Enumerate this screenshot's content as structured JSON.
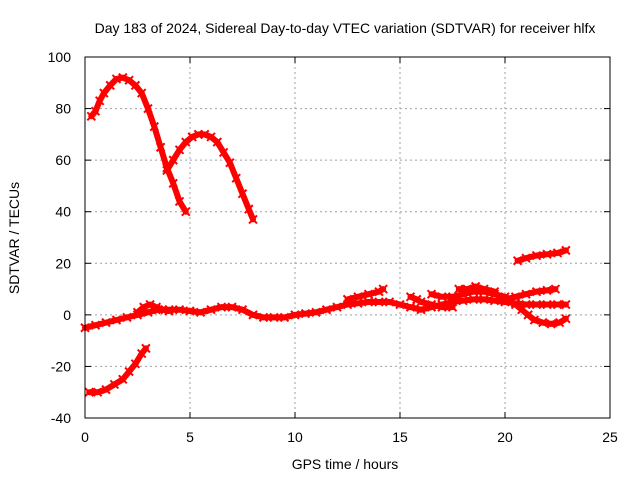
{
  "chart_data": {
    "type": "scatter",
    "title": "Day 183 of 2024, Sidereal Day-to-day VTEC variation (SDTVAR) for receiver hlfx",
    "xlabel": "GPS time / hours",
    "ylabel": "SDTVAR / TECUs",
    "xlim": [
      0,
      25
    ],
    "ylim": [
      -40,
      100
    ],
    "xticks": [
      "0",
      "5",
      "10",
      "15",
      "20",
      "25"
    ],
    "yticks": [
      "-40",
      "-20",
      "0",
      "20",
      "40",
      "60",
      "80",
      "100"
    ],
    "grid": true,
    "color": "#ff0000",
    "series": [
      {
        "name": "arc-1",
        "points": [
          [
            0.3,
            77
          ],
          [
            0.5,
            79
          ],
          [
            0.7,
            83
          ],
          [
            0.9,
            86
          ],
          [
            1.2,
            89
          ],
          [
            1.5,
            91.5
          ],
          [
            1.8,
            92
          ],
          [
            2.1,
            91
          ],
          [
            2.4,
            89
          ],
          [
            2.7,
            86
          ],
          [
            3.0,
            80
          ],
          [
            3.3,
            73
          ],
          [
            3.6,
            65
          ],
          [
            3.9,
            57
          ],
          [
            4.2,
            51
          ],
          [
            4.5,
            44
          ],
          [
            4.8,
            40
          ]
        ]
      },
      {
        "name": "arc-2",
        "points": [
          [
            3.9,
            56
          ],
          [
            4.2,
            60
          ],
          [
            4.5,
            64
          ],
          [
            4.8,
            67
          ],
          [
            5.1,
            69
          ],
          [
            5.4,
            70
          ],
          [
            5.7,
            70
          ],
          [
            6.0,
            69
          ],
          [
            6.3,
            67
          ],
          [
            6.6,
            63
          ],
          [
            6.9,
            59
          ],
          [
            7.2,
            53
          ],
          [
            7.5,
            47
          ],
          [
            7.8,
            41
          ],
          [
            8.0,
            37
          ]
        ]
      },
      {
        "name": "arc-3",
        "points": [
          [
            0.2,
            -30
          ],
          [
            0.6,
            -30
          ],
          [
            1.0,
            -29
          ],
          [
            1.4,
            -27
          ],
          [
            1.8,
            -25
          ],
          [
            2.1,
            -22
          ],
          [
            2.4,
            -19
          ],
          [
            2.7,
            -15
          ],
          [
            2.9,
            -13
          ]
        ]
      },
      {
        "name": "arc-4",
        "points": [
          [
            20.6,
            21
          ],
          [
            21.0,
            22
          ],
          [
            21.5,
            23
          ],
          [
            22.0,
            23.5
          ],
          [
            22.5,
            24
          ],
          [
            22.9,
            25
          ]
        ]
      },
      {
        "name": "band-1",
        "points": [
          [
            0,
            -5
          ],
          [
            0.5,
            -4
          ],
          [
            1,
            -3
          ],
          [
            1.5,
            -2
          ],
          [
            2,
            -1
          ],
          [
            2.5,
            0
          ],
          [
            3,
            1
          ],
          [
            3.5,
            2
          ],
          [
            4,
            2
          ],
          [
            4.5,
            2
          ],
          [
            5,
            1.5
          ],
          [
            5.5,
            1
          ],
          [
            6,
            2
          ],
          [
            6.5,
            3
          ],
          [
            7,
            3
          ],
          [
            7.5,
            2
          ],
          [
            8,
            0
          ],
          [
            8.5,
            -1
          ],
          [
            9,
            -1
          ],
          [
            9.5,
            -1
          ],
          [
            10,
            0
          ],
          [
            10.5,
            0.5
          ],
          [
            11,
            1
          ],
          [
            11.5,
            2
          ],
          [
            12,
            3
          ],
          [
            12.5,
            4
          ],
          [
            13,
            4.5
          ],
          [
            13.5,
            5
          ],
          [
            14,
            5
          ],
          [
            14.5,
            5
          ],
          [
            15,
            4
          ],
          [
            15.5,
            3
          ],
          [
            16,
            2
          ],
          [
            16.5,
            3
          ],
          [
            17,
            4
          ],
          [
            17.5,
            5
          ],
          [
            18,
            5.5
          ],
          [
            18.5,
            6
          ],
          [
            19,
            6
          ],
          [
            19.5,
            5.5
          ],
          [
            20,
            5
          ],
          [
            20.5,
            4.5
          ],
          [
            21,
            4
          ],
          [
            21.5,
            4
          ],
          [
            22,
            4
          ],
          [
            22.5,
            4
          ],
          [
            22.9,
            4
          ]
        ]
      },
      {
        "name": "band-2",
        "points": [
          [
            2.5,
            1
          ],
          [
            2.8,
            3
          ],
          [
            3.1,
            4
          ],
          [
            3.4,
            3
          ],
          [
            3.7,
            2
          ],
          [
            4,
            1.5
          ]
        ]
      },
      {
        "name": "band-3",
        "points": [
          [
            12.5,
            6
          ],
          [
            13,
            7
          ],
          [
            13.5,
            8
          ],
          [
            14,
            9
          ],
          [
            14.2,
            10
          ]
        ]
      },
      {
        "name": "band-4",
        "points": [
          [
            15.5,
            7
          ],
          [
            15.8,
            6
          ],
          [
            16,
            5
          ],
          [
            16.5,
            4
          ],
          [
            17,
            3
          ],
          [
            17.5,
            3
          ]
        ]
      },
      {
        "name": "band-5",
        "points": [
          [
            16.5,
            8
          ],
          [
            17,
            7
          ],
          [
            17.5,
            7
          ],
          [
            18,
            8
          ],
          [
            18.5,
            9
          ],
          [
            19,
            9
          ],
          [
            19.5,
            8
          ],
          [
            20,
            7
          ]
        ]
      },
      {
        "name": "band-6",
        "points": [
          [
            17.8,
            10
          ],
          [
            18.2,
            10
          ],
          [
            18.6,
            11
          ],
          [
            19,
            10
          ],
          [
            19.5,
            9
          ]
        ]
      },
      {
        "name": "band-7",
        "points": [
          [
            20,
            6
          ],
          [
            20.5,
            7
          ],
          [
            21,
            8
          ],
          [
            21.5,
            9
          ],
          [
            22,
            9.5
          ],
          [
            22.4,
            10
          ]
        ]
      },
      {
        "name": "band-8",
        "points": [
          [
            20.5,
            4
          ],
          [
            20.8,
            2
          ],
          [
            21.1,
            0
          ],
          [
            21.4,
            -2
          ],
          [
            21.8,
            -3
          ],
          [
            22.2,
            -3.5
          ],
          [
            22.6,
            -3
          ],
          [
            22.9,
            -1.5
          ]
        ]
      }
    ]
  }
}
